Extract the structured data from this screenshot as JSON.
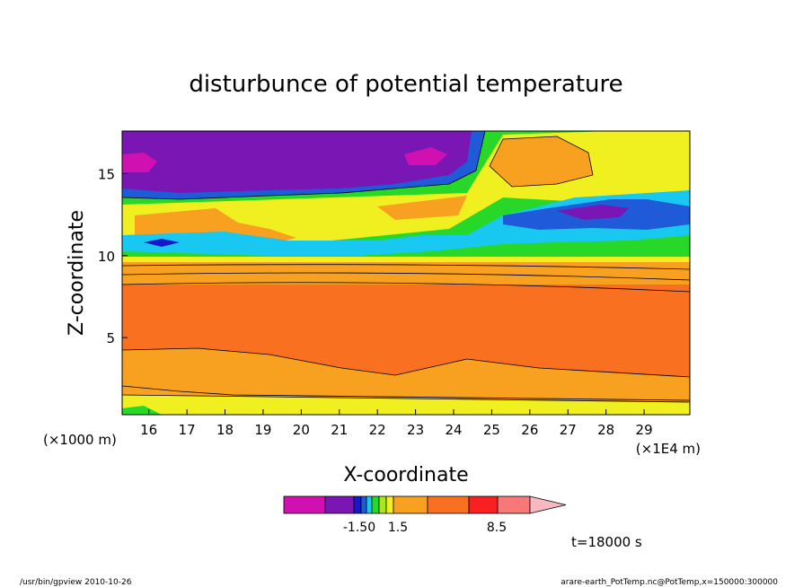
{
  "chart_data": {
    "type": "heatmap",
    "title": "disturbunce of potential temperature",
    "xlabel": "X-coordinate",
    "ylabel": "Z-coordinate",
    "x_unit_left": "(×1000 m)",
    "x_unit_right": "(×1E4 m)",
    "x_ticks": [
      "16",
      "17",
      "18",
      "19",
      "20",
      "21",
      "22",
      "23",
      "24",
      "25",
      "26",
      "27",
      "28",
      "29"
    ],
    "y_ticks": [
      "5",
      "10",
      "15"
    ],
    "xlim": [
      15.3,
      30.2
    ],
    "ylim": [
      0.3,
      17.6
    ],
    "colorbar": {
      "labels": [
        "-1.50",
        "1.5",
        "8.5"
      ],
      "colors": [
        "#d010b0",
        "#7a16b4",
        "#1818c8",
        "#1f5ad8",
        "#18c8f0",
        "#28d828",
        "#a8e818",
        "#f0f020",
        "#f8a020",
        "#f87020",
        "#f82020",
        "#f87878",
        "#f8b8c0"
      ]
    },
    "time_label": "t=18000 s",
    "footer_left": "/usr/bin/gpview   2010-10-26",
    "footer_right": "arare-earth_PotTemp.nc@PotTemp,x=150000:300000",
    "bands": [
      {
        "color": "#f87020",
        "z_low": 2.5,
        "z_high": 8.2
      },
      {
        "color": "#f8a020",
        "z_low": 0.8,
        "z_high": 2.5
      },
      {
        "color": "#f8a020",
        "z_low": 8.2,
        "z_high": 9.6
      },
      {
        "color": "#f0f020",
        "z_low": 0.5,
        "z_high": 0.8
      },
      {
        "color": "#f0f020",
        "z_low": 9.6,
        "z_high": 10.2
      }
    ]
  }
}
